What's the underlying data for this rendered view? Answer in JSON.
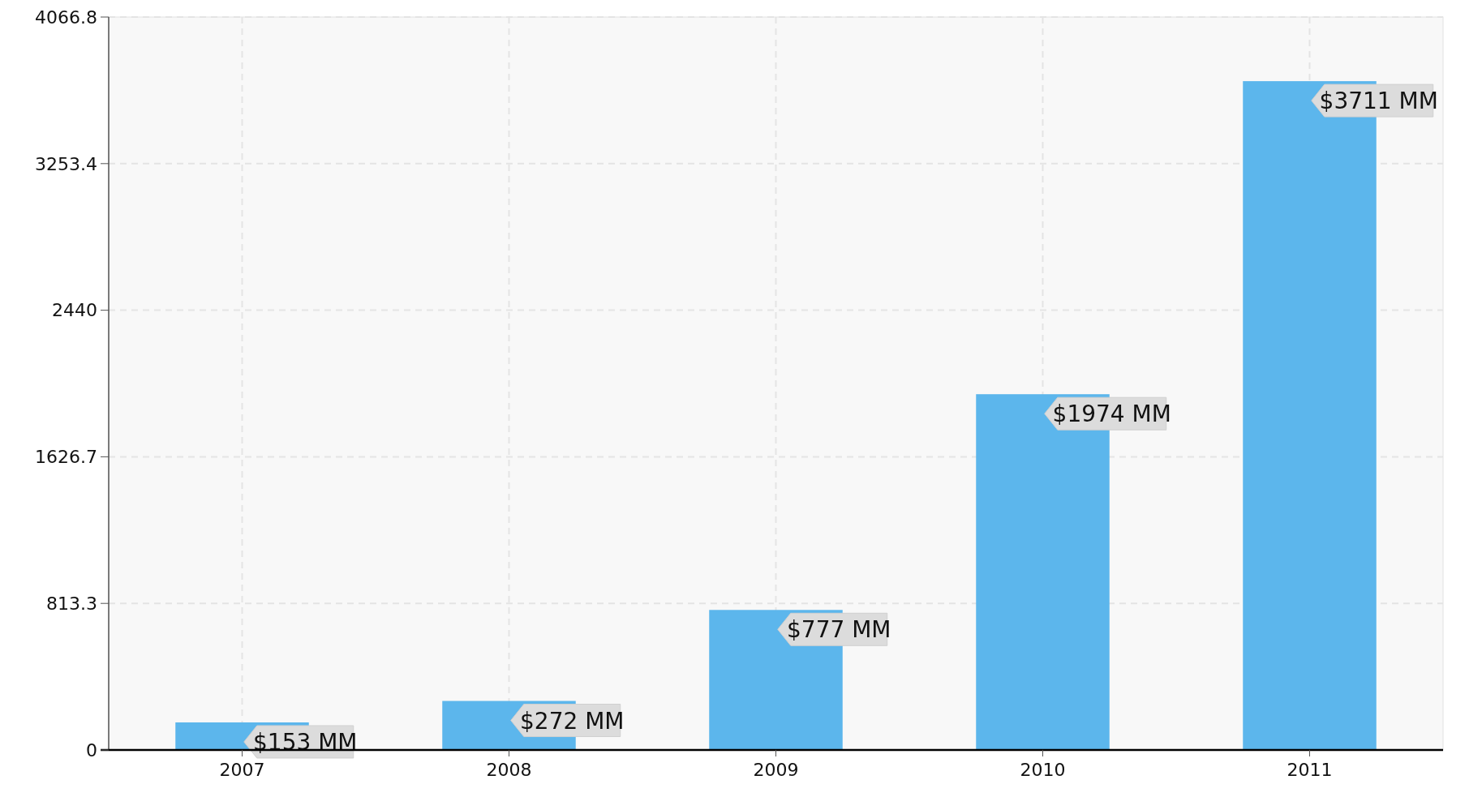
{
  "chart_data": {
    "type": "bar",
    "categories": [
      "2007",
      "2008",
      "2009",
      "2010",
      "2011"
    ],
    "values": [
      153,
      272,
      777,
      1974,
      3711
    ],
    "value_labels": [
      "$153 MM",
      "$272 MM",
      "$777 MM",
      "$1974 MM",
      "$3711 MM"
    ],
    "color": "#5cb6ec",
    "ylim": [
      0,
      4066.8
    ],
    "yticks": [
      0,
      813.3,
      1626.7,
      2440,
      3253.4,
      4066.8
    ],
    "grid": true
  }
}
